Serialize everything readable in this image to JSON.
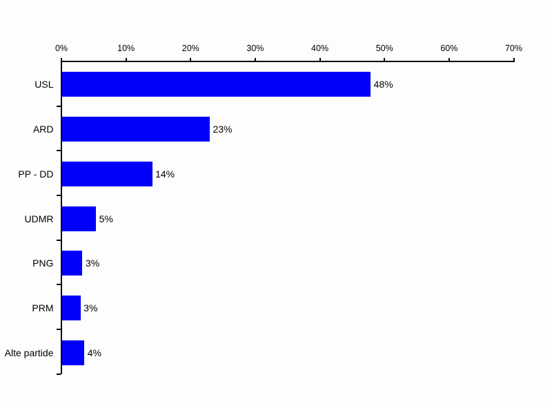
{
  "chart_data": {
    "type": "bar",
    "orientation": "horizontal",
    "title": "",
    "xlabel": "",
    "ylabel": "",
    "categories": [
      "USL",
      "ARD",
      "PP - DD",
      "UDMR",
      "PNG",
      "PRM",
      "Alte partide"
    ],
    "values": [
      47.8,
      22.9,
      14.0,
      5.3,
      3.2,
      2.9,
      3.5
    ],
    "value_labels": [
      "48%",
      "23%",
      "14%",
      "5%",
      "3%",
      "3%",
      "4%"
    ],
    "x_tick_labels": [
      "0%",
      "10%",
      "20%",
      "30%",
      "40%",
      "50%",
      "60%",
      "70%"
    ],
    "x_tick_values": [
      0,
      10,
      20,
      30,
      40,
      50,
      60,
      70
    ],
    "xlim": [
      0,
      70
    ],
    "grid": "off",
    "legend": "none",
    "bar_color": "#0000fb",
    "axis_color": "#000000",
    "text_color": "#000000",
    "background_color": "#fdfdfd"
  }
}
